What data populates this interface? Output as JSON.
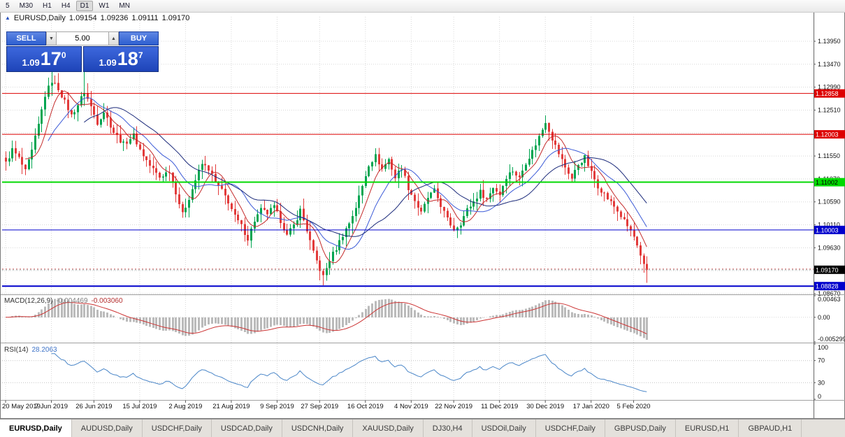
{
  "toolbar": {
    "timeframes": [
      "5",
      "M30",
      "H1",
      "H4",
      "D1",
      "W1",
      "MN"
    ],
    "active": "D1"
  },
  "chart": {
    "title": {
      "symbol": "EURUSD,Daily",
      "open": "1.09154",
      "high": "1.09236",
      "low": "1.09111",
      "close": "1.09170"
    },
    "one_click": {
      "collapse_icon": "▲",
      "sell_label": "SELL",
      "buy_label": "BUY",
      "volume": "5.00",
      "spin_down_icon": "▼",
      "spin_up_icon": "▲",
      "sell_price_big": "1.09",
      "sell_price_large": "17",
      "sell_price_sup": "0",
      "buy_price_big": "1.09",
      "buy_price_large": "18",
      "buy_price_sup": "7"
    }
  },
  "chart_data": {
    "type": "candlestick",
    "symbol": "EURUSD",
    "timeframe": "Daily",
    "count": 197,
    "up_color": "#00a551",
    "down_color": "#e23b3b",
    "grid_color": "#d8d8d8",
    "close_anchors": [
      [
        0,
        1.114
      ],
      [
        2,
        1.1168
      ],
      [
        4,
        1.115
      ],
      [
        6,
        1.1122
      ],
      [
        8,
        1.1165
      ],
      [
        10,
        1.122
      ],
      [
        12,
        1.1282
      ],
      [
        14,
        1.1312
      ],
      [
        16,
        1.1296
      ],
      [
        18,
        1.1268
      ],
      [
        20,
        1.124
      ],
      [
        22,
        1.1262
      ],
      [
        24,
        1.129
      ],
      [
        26,
        1.1258
      ],
      [
        28,
        1.1225
      ],
      [
        30,
        1.1248
      ],
      [
        33,
        1.1205
      ],
      [
        36,
        1.118
      ],
      [
        39,
        1.1198
      ],
      [
        41,
        1.1168
      ],
      [
        44,
        1.1135
      ],
      [
        47,
        1.111
      ],
      [
        50,
        1.1125
      ],
      [
        52,
        1.108
      ],
      [
        54,
        1.1032
      ],
      [
        56,
        1.1068
      ],
      [
        58,
        1.1105
      ],
      [
        60,
        1.1138
      ],
      [
        62,
        1.1128
      ],
      [
        64,
        1.11
      ],
      [
        66,
        1.1082
      ],
      [
        68,
        1.106
      ],
      [
        70,
        1.1028
      ],
      [
        72,
        1.1008
      ],
      [
        74,
        1.0982
      ],
      [
        76,
        1.102
      ],
      [
        78,
        1.1042
      ],
      [
        80,
        1.1035
      ],
      [
        82,
        1.1048
      ],
      [
        84,
        1.102
      ],
      [
        86,
        1.0988
      ],
      [
        88,
        1.101
      ],
      [
        90,
        1.1042
      ],
      [
        92,
        1.1
      ],
      [
        94,
        1.0952
      ],
      [
        96,
        1.0918
      ],
      [
        97,
        1.0902
      ],
      [
        99,
        1.0938
      ],
      [
        101,
        1.0962
      ],
      [
        103,
        1.099
      ],
      [
        105,
        1.1015
      ],
      [
        107,
        1.1048
      ],
      [
        109,
        1.1092
      ],
      [
        111,
        1.1138
      ],
      [
        113,
        1.1155
      ],
      [
        115,
        1.1128
      ],
      [
        117,
        1.1148
      ],
      [
        119,
        1.111
      ],
      [
        121,
        1.1132
      ],
      [
        123,
        1.1088
      ],
      [
        125,
        1.1062
      ],
      [
        127,
        1.1035
      ],
      [
        129,
        1.1068
      ],
      [
        131,
        1.1082
      ],
      [
        133,
        1.1052
      ],
      [
        135,
        1.1022
      ],
      [
        137,
        1.1002
      ],
      [
        139,
        1.1015
      ],
      [
        141,
        1.1042
      ],
      [
        143,
        1.106
      ],
      [
        145,
        1.108
      ],
      [
        147,
        1.1065
      ],
      [
        149,
        1.109
      ],
      [
        151,
        1.1075
      ],
      [
        153,
        1.1112
      ],
      [
        155,
        1.1125
      ],
      [
        157,
        1.1108
      ],
      [
        159,
        1.1142
      ],
      [
        161,
        1.1165
      ],
      [
        163,
        1.1195
      ],
      [
        165,
        1.1228
      ],
      [
        167,
        1.1192
      ],
      [
        169,
        1.116
      ],
      [
        171,
        1.1132
      ],
      [
        173,
        1.1108
      ],
      [
        175,
        1.1138
      ],
      [
        177,
        1.1152
      ],
      [
        179,
        1.112
      ],
      [
        181,
        1.1092
      ],
      [
        183,
        1.1075
      ],
      [
        185,
        1.1058
      ],
      [
        187,
        1.104
      ],
      [
        189,
        1.1018
      ],
      [
        191,
        1.0998
      ],
      [
        192,
        1.0985
      ],
      [
        193,
        1.0965
      ],
      [
        194,
        1.0942
      ],
      [
        195,
        1.0925
      ],
      [
        196,
        1.0917
      ]
    ],
    "wick_highs": [
      [
        14,
        1.134
      ],
      [
        24,
        1.1332
      ],
      [
        165,
        1.124
      ]
    ],
    "wick_lows": [
      [
        54,
        1.1026
      ],
      [
        97,
        1.0885
      ],
      [
        196,
        1.089
      ]
    ],
    "ma": [
      {
        "period": 7,
        "color": "#c42b2b"
      },
      {
        "period": 14,
        "color": "#3c5bd7"
      },
      {
        "period": 25,
        "color": "#1b2a7a"
      }
    ],
    "y_ticks": [
      "1.13950",
      "1.13470",
      "1.12990",
      "1.12510",
      "1.12030",
      "1.11550",
      "1.11070",
      "1.10590",
      "1.10110",
      "1.09630",
      "1.09150",
      "1.08670"
    ],
    "price_lines": [
      {
        "value": 1.12858,
        "label": "1.12858",
        "color": "#dd0000",
        "text_color": "#ffffff",
        "width": 1
      },
      {
        "value": 1.12003,
        "label": "1.12003",
        "color": "#dd0000",
        "text_color": "#ffffff",
        "width": 1
      },
      {
        "value": 1.11002,
        "label": "1.11002",
        "color": "#00d900",
        "text_color": "#000000",
        "width": 2
      },
      {
        "value": 1.10003,
        "label": "1.10003",
        "color": "#0000cc",
        "text_color": "#ffffff",
        "width": 1
      },
      {
        "value": 1.08828,
        "label": "1.08828",
        "color": "#0000cc",
        "text_color": "#ffffff",
        "width": 2
      }
    ],
    "current_price": {
      "value": 1.0917,
      "label": "1.09170"
    },
    "ask_line": {
      "value": 1.09187,
      "color": "#e08080"
    },
    "x_labels": [
      {
        "i": 0,
        "label": "20 May 2019"
      },
      {
        "i": 14,
        "label": "7 Jun 2019"
      },
      {
        "i": 27,
        "label": "26 Jun 2019"
      },
      {
        "i": 41,
        "label": "15 Jul 2019"
      },
      {
        "i": 55,
        "label": "2 Aug 2019"
      },
      {
        "i": 69,
        "label": "21 Aug 2019"
      },
      {
        "i": 83,
        "label": "9 Sep 2019"
      },
      {
        "i": 96,
        "label": "27 Sep 2019"
      },
      {
        "i": 110,
        "label": "16 Oct 2019"
      },
      {
        "i": 124,
        "label": "4 Nov 2019"
      },
      {
        "i": 137,
        "label": "22 Nov 2019"
      },
      {
        "i": 151,
        "label": "11 Dec 2019"
      },
      {
        "i": 165,
        "label": "30 Dec 2019"
      },
      {
        "i": 179,
        "label": "17 Jan 2020"
      },
      {
        "i": 192,
        "label": "5 Feb 2020"
      }
    ],
    "macd": {
      "label": "MACD(12,26,9)",
      "main_value": "-0.004469",
      "signal_value": "-0.003060",
      "fast": 12,
      "slow": 26,
      "signal": 9,
      "axis": [
        "0.00463",
        "0.00",
        "-0.005299"
      ],
      "range": [
        -0.005299,
        0.00463
      ],
      "hist_color": "#bbbbbb",
      "signal_color": "#cc3333"
    },
    "rsi": {
      "label": "RSI(14)",
      "value": "28.2063",
      "period": 14,
      "levels": [
        100,
        70,
        30,
        0
      ],
      "line_color": "#4a86c8"
    }
  },
  "tabs": [
    {
      "label": "EURUSD,Daily",
      "active": true
    },
    {
      "label": "AUDUSD,Daily"
    },
    {
      "label": "USDCHF,Daily"
    },
    {
      "label": "USDCAD,Daily"
    },
    {
      "label": "USDCNH,Daily"
    },
    {
      "label": "XAUUSD,Daily"
    },
    {
      "label": "DJ30,H4"
    },
    {
      "label": "USDOil,Daily"
    },
    {
      "label": "USDCHF,Daily"
    },
    {
      "label": "GBPUSD,Daily"
    },
    {
      "label": "EURUSD,H1"
    },
    {
      "label": "GBPAUD,H1"
    }
  ]
}
